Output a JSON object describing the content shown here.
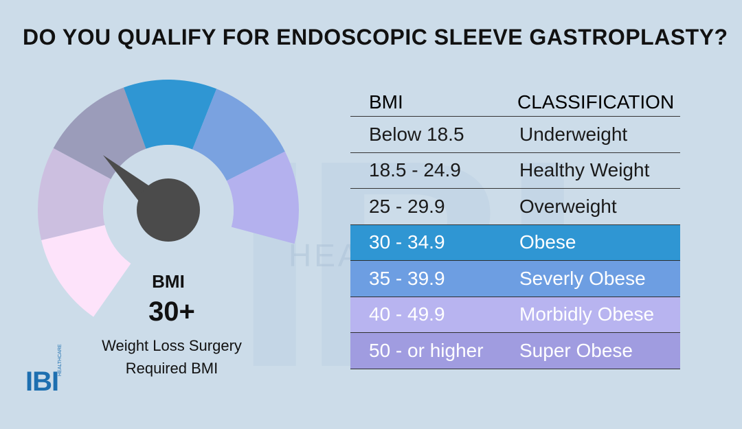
{
  "title": "DO YOU QUALIFY FOR ENDOSCOPIC SLEEVE GASTROPLASTY?",
  "watermark": {
    "letters": "IBI",
    "sub": "HEALTHCARE"
  },
  "gauge": {
    "segment_colors": [
      "#fde3fa",
      "#ccbfe0",
      "#9b9cba",
      "#2f96d3",
      "#7aa2e0",
      "#b4b1ee"
    ],
    "needle_color": "#4b4b4b",
    "label": "BMI",
    "value": "30+",
    "note_line1": "Weight Loss Surgery",
    "note_line2": "Required BMI"
  },
  "table": {
    "headers": [
      "BMI",
      "CLASSIFICATION"
    ],
    "rows": [
      {
        "bmi": "Below 18.5",
        "classification": "Underweight",
        "color": ""
      },
      {
        "bmi": "18.5 - 24.9",
        "classification": "Healthy Weight",
        "color": ""
      },
      {
        "bmi": "25 - 29.9",
        "classification": "Overweight",
        "color": ""
      },
      {
        "bmi": "30 - 34.9",
        "classification": "Obese",
        "color": "#2f96d3"
      },
      {
        "bmi": "35 - 39.9",
        "classification": "Severly Obese",
        "color": "#6d9ee2"
      },
      {
        "bmi": "40 - 49.9",
        "classification": "Morbidly Obese",
        "color": "#b8b4f0"
      },
      {
        "bmi": "50 - or higher",
        "classification": "Super Obese",
        "color": "#a09ce0"
      }
    ]
  },
  "logo": {
    "text": "IBI",
    "sub": "HEALTHCARE"
  }
}
